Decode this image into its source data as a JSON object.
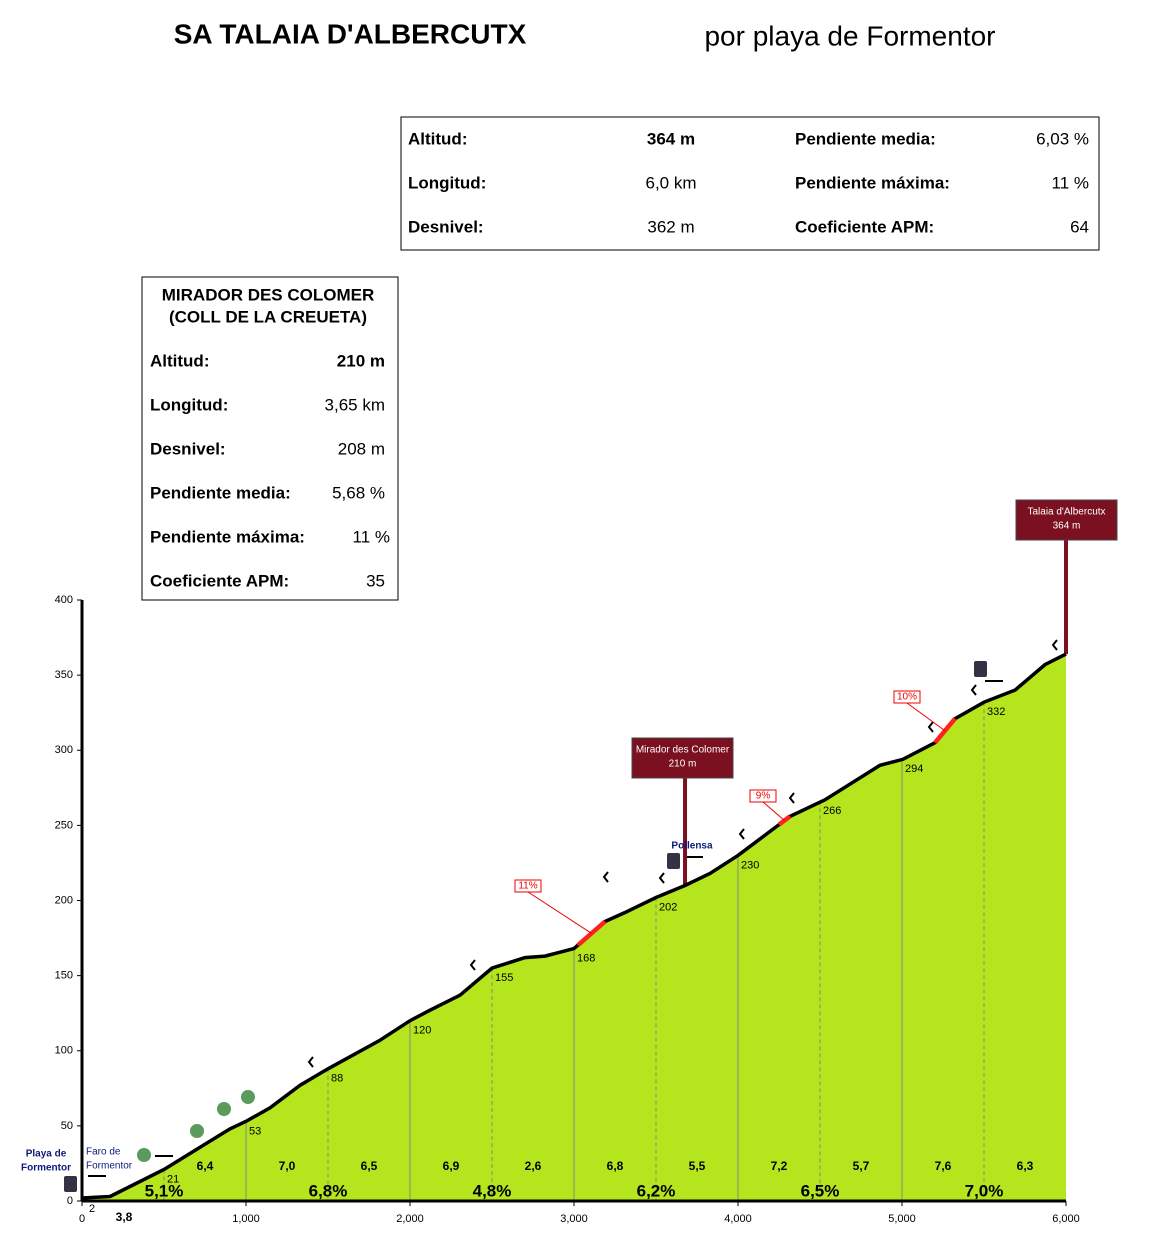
{
  "header": {
    "title": "SA TALAIA D'ALBERCUTX",
    "subtitle": "por playa de Formentor"
  },
  "info": {
    "rows": [
      [
        "Altitud:",
        "364 m",
        "Pendiente media:",
        "6,03 %"
      ],
      [
        "Longitud:",
        "6,0 km",
        "Pendiente máxima:",
        "11 %"
      ],
      [
        "Desnivel:",
        "362 m",
        "Coeficiente APM:",
        "64"
      ]
    ]
  },
  "mirador": {
    "title": [
      "MIRADOR DES COLOMER",
      "(COLL DE LA CREUETA)"
    ],
    "rows": [
      [
        "Altitud:",
        "210 m"
      ],
      [
        "Longitud:",
        "3,65 km"
      ],
      [
        "Desnivel:",
        "208 m"
      ],
      [
        "Pendiente media:",
        "5,68 %"
      ],
      [
        "Pendiente máxima:",
        "11 %"
      ],
      [
        "Coeficiente APM:",
        "35"
      ]
    ]
  },
  "chart_data": {
    "type": "area",
    "x": [
      0,
      171,
      500,
      902,
      1000,
      1146,
      1329,
      1500,
      1817,
      2000,
      2122,
      2305,
      2500,
      2701,
      2823,
      3000,
      3189,
      3311,
      3500,
      3677,
      3829,
      4000,
      4317,
      4530,
      4866,
      5006,
      5201,
      5323,
      5500,
      5689,
      5872,
      6000
    ],
    "values": [
      2,
      3,
      21,
      48,
      53,
      62,
      77,
      88,
      107,
      120,
      127,
      137,
      155,
      162,
      163,
      168,
      186,
      192,
      202,
      210,
      218,
      230,
      256,
      267,
      290,
      294,
      305,
      321,
      332,
      340,
      357,
      364
    ],
    "color": "#b5e61d",
    "xlim": [
      0,
      6000
    ],
    "xticks": [
      0,
      {
        "value": 1000,
        "label": "1,000"
      },
      {
        "value": 2000,
        "label": "2,000"
      },
      {
        "value": 3000,
        "label": "3,000"
      },
      {
        "value": 4000,
        "label": "4,000"
      },
      {
        "value": 5000,
        "label": "5,000"
      },
      {
        "value": 6000,
        "label": "6,000"
      }
    ],
    "ylim": [
      0,
      400
    ],
    "yticks": [
      0,
      50,
      100,
      150,
      200,
      250,
      300,
      350,
      400
    ],
    "altitude_labels": {
      "x": [
        0,
        500,
        1000,
        1500,
        2000,
        2500,
        3000,
        3500,
        4000,
        4500,
        5000,
        5500
      ],
      "values": [
        2,
        21,
        53,
        88,
        120,
        155,
        168,
        202,
        230,
        266,
        294,
        332
      ]
    },
    "segment_gradients": {
      "x": [
        250,
        750,
        1250,
        1750,
        2250,
        2750,
        3250,
        3750,
        4250,
        4750,
        5250,
        5750
      ],
      "values": [
        3.8,
        6.4,
        7.0,
        6.5,
        6.9,
        2.6,
        6.8,
        5.5,
        7.2,
        5.7,
        7.6,
        6.3
      ],
      "value_labels": [
        "3,8",
        "6,4",
        "7,0",
        "6,5",
        "6,9",
        "2,6",
        "6,8",
        "5,5",
        "7,2",
        "5,7",
        "7,6",
        "6,3"
      ]
    },
    "km_gradients": {
      "x": [
        500,
        1500,
        2500,
        3500,
        4500,
        5500
      ],
      "values": [
        5.1,
        6.8,
        4.8,
        6.2,
        6.5,
        7.0
      ],
      "value_labels": [
        "5,1%",
        "6,8%",
        "4,8%",
        "6,2%",
        "6,5%",
        "7,0%"
      ]
    },
    "steep_sections": [
      {
        "x": [
          3024,
          3189
        ],
        "value": 11,
        "value_label": "11%"
      },
      {
        "x": [
          4250,
          4317
        ],
        "value": 9,
        "value_label": "9%"
      },
      {
        "x": [
          5201,
          5323
        ],
        "value": 10,
        "value_label": "10%"
      }
    ],
    "summits": [
      {
        "name": "Talaia d'Albercutx",
        "x": 6000,
        "value": 364,
        "value_label": "364 m"
      },
      {
        "name": "Mirador des Colomer",
        "x": 3677,
        "value": 210,
        "value_label": "210 m"
      }
    ],
    "places": [
      "Playa de",
      "Formentor",
      "Faro de",
      "Formentor",
      "Pollensa"
    ]
  }
}
